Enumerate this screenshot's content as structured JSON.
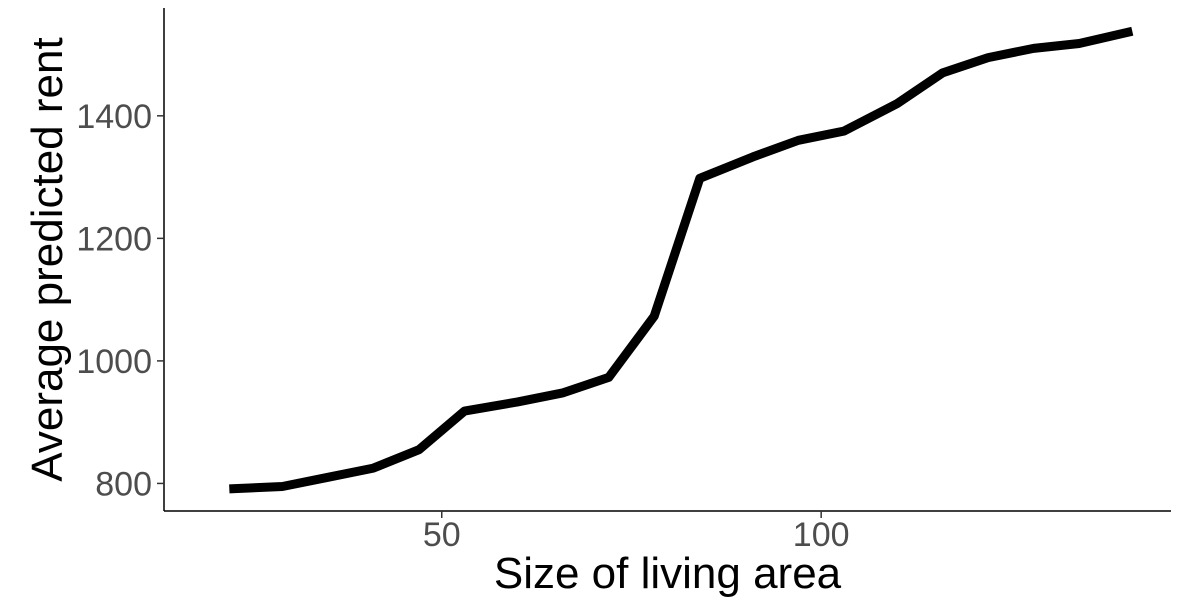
{
  "chart_data": {
    "type": "line",
    "xlabel": "Size of living area",
    "ylabel": "Average predicted rent",
    "x_ticks": [
      50,
      100
    ],
    "y_ticks": [
      800,
      1000,
      1200,
      1400
    ],
    "xlim": [
      13.4,
      146.1
    ],
    "ylim": [
      755,
      1576
    ],
    "grid": false,
    "series": [
      {
        "x": [
          22,
          29,
          35,
          41,
          47,
          53,
          60,
          66,
          72,
          78,
          84,
          91,
          97,
          103,
          110,
          116,
          122,
          128,
          134,
          141
        ],
        "y": [
          791,
          795,
          810,
          825,
          855,
          918,
          933,
          948,
          973,
          1073,
          1298,
          1333,
          1360,
          1375,
          1420,
          1470,
          1495,
          1510,
          1518,
          1538
        ]
      }
    ]
  }
}
